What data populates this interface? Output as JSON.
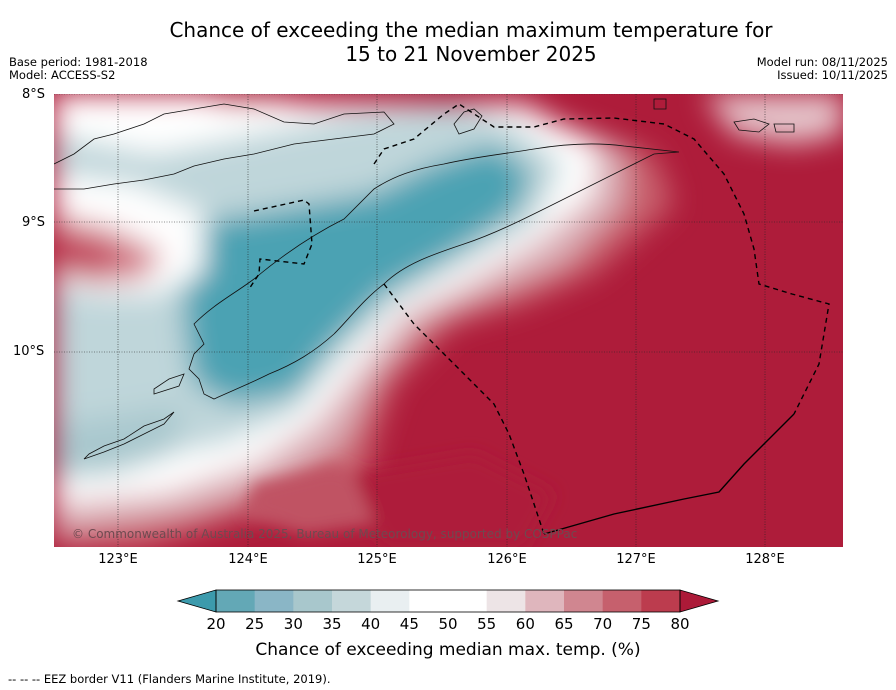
{
  "title": {
    "line1": "Chance of exceeding the median maximum temperature for",
    "line2": "15 to 21 November 2025"
  },
  "meta_left": {
    "base_period": "Base period: 1981-2018",
    "model": "Model: ACCESS-S2"
  },
  "meta_right": {
    "model_run": "Model run: 08/11/2025",
    "issued": "Issued: 10/11/2025"
  },
  "map": {
    "lat_labels": [
      "8°S",
      "9°S",
      "10°S"
    ],
    "lon_labels": [
      "123°E",
      "124°E",
      "125°E",
      "126°E",
      "127°E",
      "128°E"
    ],
    "copyright": "© Commonwealth of Australia 2025, Bureau of Meteorology, supported by COSPPac"
  },
  "colorbar": {
    "ticks": [
      "20",
      "25",
      "30",
      "35",
      "40",
      "45",
      "50",
      "55",
      "60",
      "65",
      "70",
      "75",
      "80"
    ],
    "colors": [
      "#63a8b6",
      "#8ab6c6",
      "#a8c7cc",
      "#c5d7da",
      "#e9eff1",
      "#ffffff",
      "#ffffff",
      "#ede4e6",
      "#dfb6bd",
      "#d08690",
      "#c6606d",
      "#bc3c4e"
    ],
    "under_color": "#3c9aac",
    "over_color": "#ac1a38",
    "label": "Chance of exceeding median max. temp. (%)"
  },
  "footer": "--  --  -- EEZ border V11 (Flanders Marine Institute, 2019)."
}
